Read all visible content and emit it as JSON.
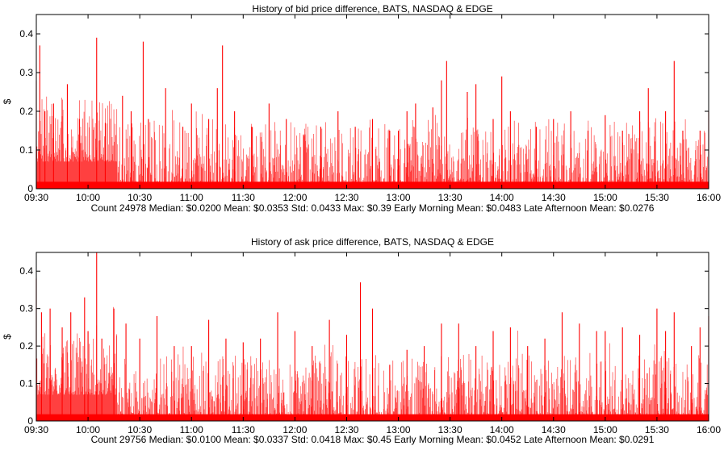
{
  "chart_data": [
    {
      "type": "bar",
      "title": "History of bid price difference, BATS, NASDAQ & EDGE",
      "xlabel": "",
      "ylabel": "$",
      "ylim": [
        0,
        0.45
      ],
      "yticks": [
        "0",
        "0.1",
        "0.2",
        "0.3",
        "0.4"
      ],
      "ytick_values": [
        0,
        0.1,
        0.2,
        0.3,
        0.4
      ],
      "xlim": [
        "09:30",
        "16:00"
      ],
      "xticks": [
        "09:30",
        "10:00",
        "10:30",
        "11:00",
        "11:30",
        "12:00",
        "12:30",
        "13:00",
        "13:30",
        "14:00",
        "14:30",
        "15:00",
        "15:30",
        "16:00"
      ],
      "color": "#ff0000",
      "grid": false,
      "summary": "Count 24978 Median: $0.0200 Mean: $0.0353 Std: 0.0433 Max: $0.39 Early Morning Mean: $0.0483 Late Afternoon Mean: $0.0276",
      "series": [
        {
          "x": [
            "09:30",
            "09:32",
            "09:35",
            "09:40",
            "09:48",
            "09:55",
            "10:05",
            "10:10",
            "10:20",
            "10:25",
            "10:32",
            "10:35",
            "10:45",
            "10:55",
            "11:00",
            "11:10",
            "11:15",
            "11:18",
            "11:25",
            "11:35",
            "11:45",
            "11:55",
            "12:05",
            "12:15",
            "12:25",
            "12:35",
            "12:45",
            "12:55",
            "13:00",
            "13:05",
            "13:10",
            "13:20",
            "13:25",
            "13:28",
            "13:40",
            "13:45",
            "13:55",
            "14:00",
            "14:05",
            "14:20",
            "14:30",
            "14:40",
            "14:50",
            "15:00",
            "15:10",
            "15:20",
            "15:25",
            "15:35",
            "15:40",
            "15:45",
            "15:55",
            "16:00"
          ],
          "values": [
            0.28,
            0.37,
            0.2,
            0.22,
            0.27,
            0.18,
            0.39,
            0.17,
            0.24,
            0.2,
            0.38,
            0.18,
            0.26,
            0.16,
            0.22,
            0.18,
            0.26,
            0.37,
            0.2,
            0.16,
            0.22,
            0.18,
            0.14,
            0.16,
            0.2,
            0.16,
            0.18,
            0.15,
            0.15,
            0.2,
            0.22,
            0.21,
            0.28,
            0.33,
            0.25,
            0.27,
            0.18,
            0.29,
            0.2,
            0.16,
            0.18,
            0.2,
            0.15,
            0.19,
            0.15,
            0.2,
            0.26,
            0.2,
            0.33,
            0.15,
            0.15,
            0.2
          ]
        }
      ]
    },
    {
      "type": "bar",
      "title": "History of ask price difference, BATS, NASDAQ & EDGE",
      "xlabel": "",
      "ylabel": "$",
      "ylim": [
        0,
        0.45
      ],
      "yticks": [
        "0",
        "0.1",
        "0.2",
        "0.3",
        "0.4"
      ],
      "ytick_values": [
        0,
        0.1,
        0.2,
        0.3,
        0.4
      ],
      "xlim": [
        "09:30",
        "16:00"
      ],
      "xticks": [
        "09:30",
        "10:00",
        "10:30",
        "11:00",
        "11:30",
        "12:00",
        "12:30",
        "13:00",
        "13:30",
        "14:00",
        "14:30",
        "15:00",
        "15:30",
        "16:00"
      ],
      "color": "#ff0000",
      "grid": false,
      "summary": "Count 29756 Median: $0.0100 Mean: $0.0337 Std: 0.0418 Max: $0.45 Early Morning Mean: $0.0452 Late Afternoon Mean: $0.0291",
      "series": [
        {
          "x": [
            "09:30",
            "09:33",
            "09:38",
            "09:45",
            "09:50",
            "09:58",
            "10:00",
            "10:05",
            "10:08",
            "10:15",
            "10:22",
            "10:30",
            "10:40",
            "10:50",
            "11:00",
            "11:10",
            "11:20",
            "11:30",
            "11:40",
            "11:50",
            "12:00",
            "12:10",
            "12:20",
            "12:30",
            "12:38",
            "12:45",
            "12:55",
            "13:05",
            "13:15",
            "13:25",
            "13:35",
            "13:45",
            "13:55",
            "14:05",
            "14:15",
            "14:25",
            "14:35",
            "14:45",
            "14:55",
            "15:00",
            "15:10",
            "15:20",
            "15:30",
            "15:35",
            "15:40",
            "15:50",
            "15:55",
            "16:00"
          ],
          "values": [
            0.38,
            0.29,
            0.3,
            0.25,
            0.29,
            0.33,
            0.24,
            0.45,
            0.22,
            0.3,
            0.26,
            0.22,
            0.28,
            0.2,
            0.2,
            0.27,
            0.22,
            0.21,
            0.22,
            0.29,
            0.24,
            0.2,
            0.27,
            0.23,
            0.37,
            0.3,
            0.15,
            0.19,
            0.2,
            0.26,
            0.26,
            0.2,
            0.24,
            0.25,
            0.2,
            0.22,
            0.29,
            0.26,
            0.24,
            0.24,
            0.25,
            0.23,
            0.3,
            0.24,
            0.29,
            0.2,
            0.25,
            0.28
          ]
        }
      ]
    }
  ]
}
